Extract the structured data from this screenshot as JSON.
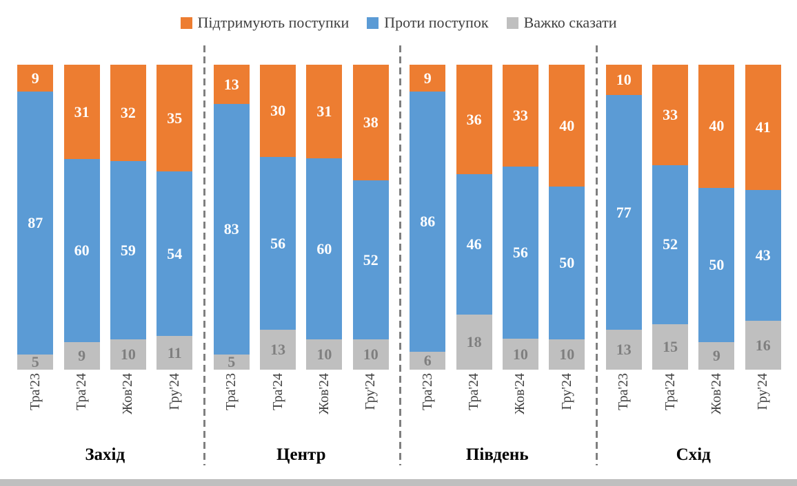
{
  "legend": {
    "items": [
      {
        "label": "Підтримують поступки",
        "color": "#ED7D31"
      },
      {
        "label": "Проти поступок",
        "color": "#5B9BD5"
      },
      {
        "label": "Важко сказати",
        "color": "#BFBFBF"
      }
    ]
  },
  "chart_data": {
    "type": "bar",
    "stacked": true,
    "percent_stacked": true,
    "legend_position": "top",
    "grid": false,
    "series_order_top_to_bottom": [
      "Підтримують поступки",
      "Проти поступок",
      "Важко сказати"
    ],
    "colors": {
      "Підтримують поступки": "#ED7D31",
      "Проти поступок": "#5B9BD5",
      "Важко сказати": "#BFBFBF"
    },
    "value_label_colors": {
      "Підтримують поступки": "#FFFFFF",
      "Проти поступок": "#FFFFFF",
      "Важко сказати": "#7F7F7F"
    },
    "groups": [
      {
        "label": "Захід",
        "categories": [
          "Тра'23",
          "Тра'24",
          "Жов'24",
          "Гру'24"
        ],
        "series": [
          {
            "name": "Підтримують поступки",
            "values": [
              9,
              31,
              32,
              35
            ]
          },
          {
            "name": "Проти поступок",
            "values": [
              87,
              60,
              59,
              54
            ]
          },
          {
            "name": "Важко сказати",
            "values": [
              5,
              9,
              10,
              11
            ]
          }
        ]
      },
      {
        "label": "Центр",
        "categories": [
          "Тра'23",
          "Тра'24",
          "Жов'24",
          "Гру'24"
        ],
        "series": [
          {
            "name": "Підтримують поступки",
            "values": [
              13,
              30,
              31,
              38
            ]
          },
          {
            "name": "Проти поступок",
            "values": [
              83,
              56,
              60,
              52
            ]
          },
          {
            "name": "Важко сказати",
            "values": [
              5,
              13,
              10,
              10
            ]
          }
        ]
      },
      {
        "label": "Південь",
        "categories": [
          "Тра'23",
          "Тра'24",
          "Жов'24",
          "Гру'24"
        ],
        "series": [
          {
            "name": "Підтримують поступки",
            "values": [
              9,
              36,
              33,
              40
            ]
          },
          {
            "name": "Проти поступок",
            "values": [
              86,
              46,
              56,
              50
            ]
          },
          {
            "name": "Важко сказати",
            "values": [
              6,
              18,
              10,
              10
            ]
          }
        ]
      },
      {
        "label": "Схід",
        "categories": [
          "Тра'23",
          "Тра'24",
          "Жов'24",
          "Гру'24"
        ],
        "series": [
          {
            "name": "Підтримують поступки",
            "values": [
              10,
              33,
              40,
              41
            ]
          },
          {
            "name": "Проти поступок",
            "values": [
              77,
              52,
              50,
              43
            ]
          },
          {
            "name": "Важко сказати",
            "values": [
              13,
              15,
              9,
              16
            ]
          }
        ]
      }
    ]
  }
}
